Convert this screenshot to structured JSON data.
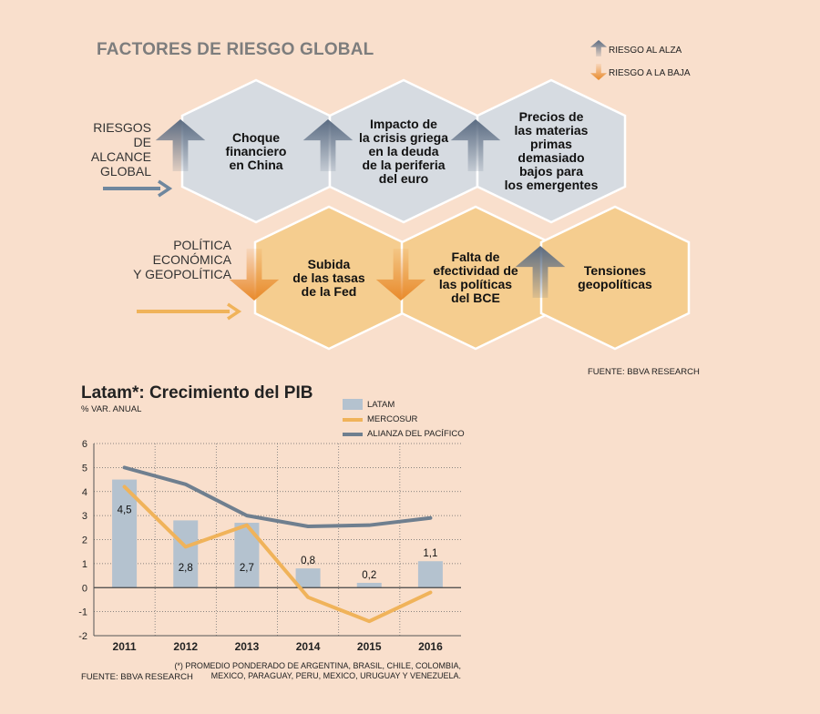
{
  "infographic": {
    "title": "FACTORES DE RIESGO GLOBAL",
    "legend": {
      "up_label": "RIESGO AL ALZA",
      "down_label": "RIESGO A LA BAJA",
      "up_color": "#5a6b82",
      "down_color": "#e8892a"
    },
    "row_global": {
      "label_lines": [
        "RIESGOS",
        "DE",
        "ALCANCE",
        "GLOBAL"
      ],
      "arrow_color": "#6f879e",
      "hex_color": "#d6dbe1",
      "items": [
        {
          "lines": [
            "Choque",
            "financiero",
            "en China"
          ],
          "direction": "up"
        },
        {
          "lines": [
            "Impacto de",
            "la crisis griega",
            "en la deuda",
            "de la periferia",
            "del euro"
          ],
          "direction": "up"
        },
        {
          "lines": [
            "Precios de",
            "las materias",
            "primas",
            "demasiado",
            "bajos para",
            "los emergentes"
          ],
          "direction": "up"
        }
      ]
    },
    "row_policy": {
      "label_lines": [
        "POLÍTICA",
        "ECONÓMICA",
        "Y GEOPOLÍTICA"
      ],
      "arrow_color": "#f0b35a",
      "hex_color": "#f5cd8f",
      "items": [
        {
          "lines": [
            "Subida",
            "de las tasas",
            "de la Fed"
          ],
          "direction": "down"
        },
        {
          "lines": [
            "Falta de",
            "efectividad de",
            "las políticas",
            "del BCE"
          ],
          "direction": "down"
        },
        {
          "lines": [
            "Tensiones",
            "geopolíticas"
          ],
          "direction": "up"
        }
      ]
    },
    "source": "FUENTE: BBVA RESEARCH"
  },
  "chart_data": {
    "type": "bar",
    "title": "Latam*: Crecimiento del PIB",
    "subtitle": "% VAR. ANUAL",
    "categories": [
      "2011",
      "2012",
      "2013",
      "2014",
      "2015",
      "2016"
    ],
    "ylim": [
      -2,
      6
    ],
    "yticks": [
      "-2",
      "-1",
      "0",
      "1",
      "2",
      "3",
      "4",
      "5",
      "6"
    ],
    "grid": "dotted horizontal",
    "legend_position": "top-right",
    "series": [
      {
        "name": "LATAM",
        "kind": "bar",
        "color": "#b4c2cf",
        "values": [
          4.5,
          2.8,
          2.7,
          0.8,
          0.2,
          1.1
        ],
        "labels": [
          "4,5",
          "2,8",
          "2,7",
          "0,8",
          "0,2",
          "1,1"
        ]
      },
      {
        "name": "MERCOSUR",
        "kind": "line",
        "color": "#f0b35a",
        "values": [
          4.2,
          1.7,
          2.6,
          -0.4,
          -1.4,
          -0.2
        ]
      },
      {
        "name": "ALIANZA DEL PACÍFICO",
        "kind": "line",
        "color": "#6f7f8f",
        "values": [
          5.0,
          4.3,
          3.0,
          2.55,
          2.6,
          2.9
        ]
      }
    ],
    "source": "FUENTE: BBVA RESEARCH",
    "footnote": "(*) PROMEDIO PONDERADO DE ARGENTINA, BRASIL, CHILE, COLOMBIA, MEXICO, PARAGUAY, PERU, MEXICO, URUGUAY Y VENEZUELA."
  }
}
